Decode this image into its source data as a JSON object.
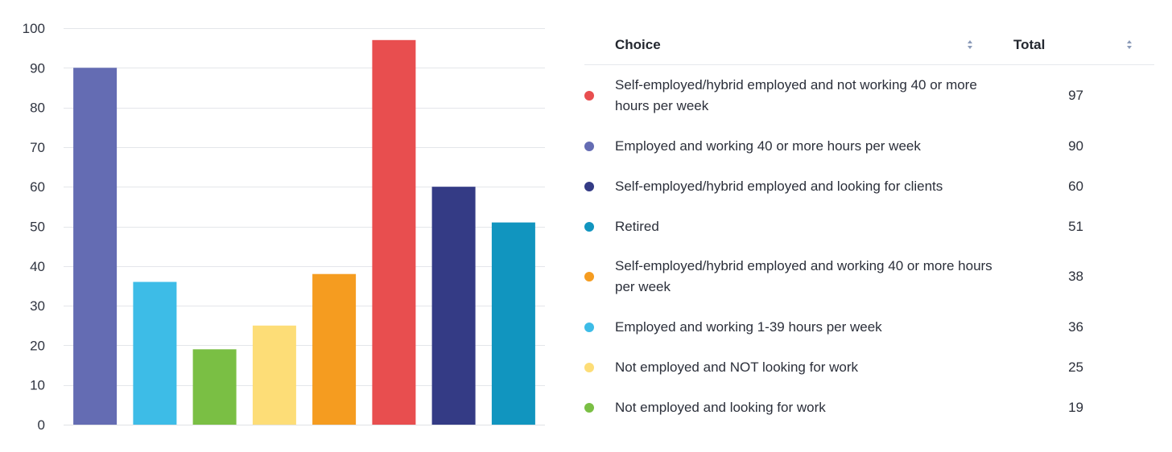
{
  "chart_data": {
    "type": "bar",
    "title": "",
    "xlabel": "",
    "ylabel": "",
    "ylim": [
      0,
      100
    ],
    "yticks": [
      0,
      10,
      20,
      30,
      40,
      50,
      60,
      70,
      80,
      90,
      100
    ],
    "grid": true,
    "legend": "none",
    "categories": [
      "Employed and working 40 or more hours per week",
      "Employed and working 1-39 hours per week",
      "Not employed and looking for work",
      "Not employed and NOT looking for work",
      "Self-employed/hybrid employed and working 40 or more hours per week",
      "Self-employed/hybrid employed and not working 40 or more hours per week",
      "Self-employed/hybrid employed and looking for clients",
      "Retired"
    ],
    "values": [
      90,
      36,
      19,
      25,
      38,
      97,
      60,
      51
    ],
    "colors": [
      "#646cb3",
      "#3dbce7",
      "#7abf44",
      "#fddd77",
      "#f59c20",
      "#e84e4f",
      "#343b85",
      "#1195bf"
    ]
  },
  "table": {
    "header": {
      "choice_label": "Choice",
      "total_label": "Total"
    },
    "rows": [
      {
        "color": "#e84e4f",
        "choice": "Self-employed/hybrid employed and not working 40 or more hours per week",
        "total": "97"
      },
      {
        "color": "#646cb3",
        "choice": "Employed and working 40 or more hours per week",
        "total": "90"
      },
      {
        "color": "#343b85",
        "choice": "Self-employed/hybrid employed and looking for clients",
        "total": "60"
      },
      {
        "color": "#1195bf",
        "choice": "Retired",
        "total": "51"
      },
      {
        "color": "#f59c20",
        "choice": "Self-employed/hybrid employed and working 40 or more hours per week",
        "total": "38"
      },
      {
        "color": "#3dbce7",
        "choice": "Employed and working 1-39 hours per week",
        "total": "36"
      },
      {
        "color": "#fddd77",
        "choice": "Not employed and NOT looking for work",
        "total": "25"
      },
      {
        "color": "#7abf44",
        "choice": "Not employed and looking for work",
        "total": "19"
      }
    ]
  }
}
